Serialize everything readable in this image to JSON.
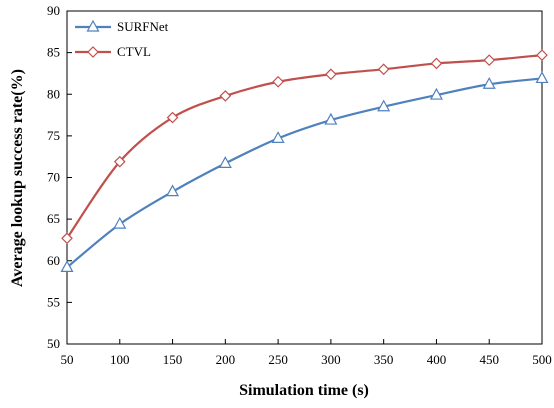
{
  "chart_data": {
    "type": "line",
    "xlabel": "Simulation time (s)",
    "ylabel": "Average lookup success rate(%)",
    "x": [
      50,
      100,
      150,
      200,
      250,
      300,
      350,
      400,
      450,
      500
    ],
    "xlim": [
      50,
      500
    ],
    "ylim": [
      50,
      90
    ],
    "xticks": [
      50,
      100,
      150,
      200,
      250,
      300,
      350,
      400,
      450,
      500
    ],
    "yticks": [
      50,
      55,
      60,
      65,
      70,
      75,
      80,
      85,
      90
    ],
    "grid": false,
    "legend": "top-left",
    "series": [
      {
        "name": "SURFNet",
        "color": "#4f81bd",
        "marker": "triangle",
        "values": [
          59.2,
          64.4,
          68.3,
          71.7,
          74.7,
          76.9,
          78.5,
          79.9,
          81.2,
          81.9
        ]
      },
      {
        "name": "CTVL",
        "color": "#c0504d",
        "marker": "diamond",
        "values": [
          62.7,
          71.9,
          77.2,
          79.8,
          81.5,
          82.4,
          83.0,
          83.7,
          84.1,
          84.7
        ]
      }
    ]
  }
}
